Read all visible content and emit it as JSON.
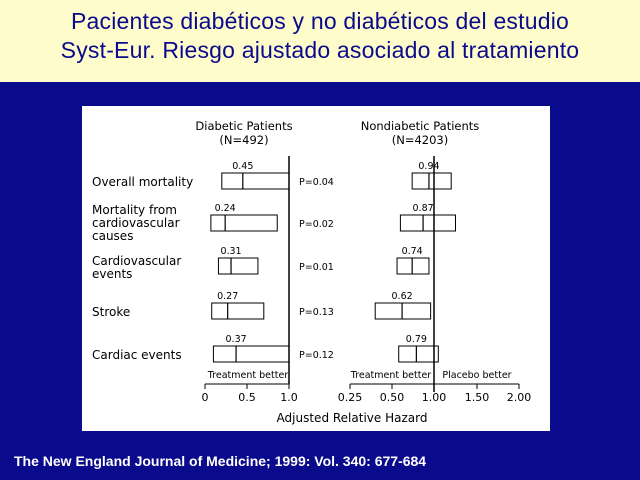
{
  "title": {
    "line1": "Pacientes diabéticos y no diabéticos del estudio",
    "line2": "Syst-Eur. Riesgo ajustado asociado al tratamiento"
  },
  "source": "The New England Journal of Medicine; 1999: Vol. 340: 677-684",
  "colors": {
    "background": "#0a0a8c",
    "title_band": "#fffccc",
    "title_text": "#0a0a8c",
    "panel": "#ffffff"
  },
  "chart_data": {
    "type": "forest",
    "groups": [
      {
        "title": "Diabetic Patients",
        "n": "(N=492)"
      },
      {
        "title": "Nondiabetic Patients",
        "n": "(N=4203)"
      }
    ],
    "outcomes": [
      {
        "label": [
          "Overall mortality"
        ],
        "diabetic": {
          "estimate": 0.45,
          "label": "0.45",
          "ci": [
            0.2,
            1.0
          ]
        },
        "p": "P=0.04",
        "nondiabetic": {
          "estimate": 0.94,
          "label": "0.94",
          "ci": [
            0.74,
            1.2
          ]
        }
      },
      {
        "label": [
          "Mortality from",
          "cardiovascular",
          "causes"
        ],
        "diabetic": {
          "estimate": 0.24,
          "label": "0.24",
          "ci": [
            0.07,
            0.86
          ]
        },
        "p": "P=0.02",
        "nondiabetic": {
          "estimate": 0.87,
          "label": "0.87",
          "ci": [
            0.6,
            1.25
          ]
        }
      },
      {
        "label": [
          "Cardiovascular",
          "events"
        ],
        "diabetic": {
          "estimate": 0.31,
          "label": "0.31",
          "ci": [
            0.16,
            0.63
          ]
        },
        "p": "P=0.01",
        "nondiabetic": {
          "estimate": 0.74,
          "label": "0.74",
          "ci": [
            0.56,
            0.94
          ]
        }
      },
      {
        "label": [
          "Stroke"
        ],
        "diabetic": {
          "estimate": 0.27,
          "label": "0.27",
          "ci": [
            0.08,
            0.7
          ]
        },
        "p": "P=0.13",
        "nondiabetic": {
          "estimate": 0.62,
          "label": "0.62",
          "ci": [
            0.4,
            0.96
          ]
        }
      },
      {
        "label": [
          "Cardiac events"
        ],
        "diabetic": {
          "estimate": 0.37,
          "label": "0.37",
          "ci": [
            0.1,
            1.0
          ]
        },
        "p": "P=0.12",
        "nondiabetic": {
          "estimate": 0.79,
          "label": "0.79",
          "ci": [
            0.58,
            1.05
          ]
        }
      }
    ],
    "diabetic_axis": {
      "ticks": [
        0,
        0.5,
        1.0
      ],
      "tick_labels": [
        "0",
        "0.5",
        "1.0"
      ],
      "range": [
        0,
        1.0
      ]
    },
    "nondiabetic_axis": {
      "ticks": [
        0.25,
        0.5,
        1.0,
        1.5,
        2.0
      ],
      "tick_labels": [
        "0.25",
        "0.50",
        "1.00",
        "1.50",
        "2.00"
      ],
      "range": [
        0.25,
        2.0
      ]
    },
    "treatment_better": "Treatment better",
    "placebo_better": "Placebo better",
    "xlabel": "Adjusted Relative Hazard"
  }
}
